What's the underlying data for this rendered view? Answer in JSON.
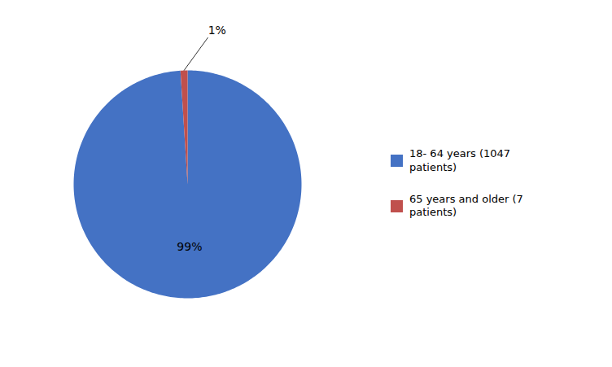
{
  "chart_data": {
    "type": "pie",
    "categories": [
      "18- 64 years (1047\n patients)",
      "65 years and older (7\n patients)"
    ],
    "values": [
      99,
      1
    ],
    "value_labels": [
      "99%",
      "1%"
    ],
    "colors": [
      "#4472C4",
      "#C0504D"
    ],
    "data_labels": true,
    "legend": "right"
  }
}
